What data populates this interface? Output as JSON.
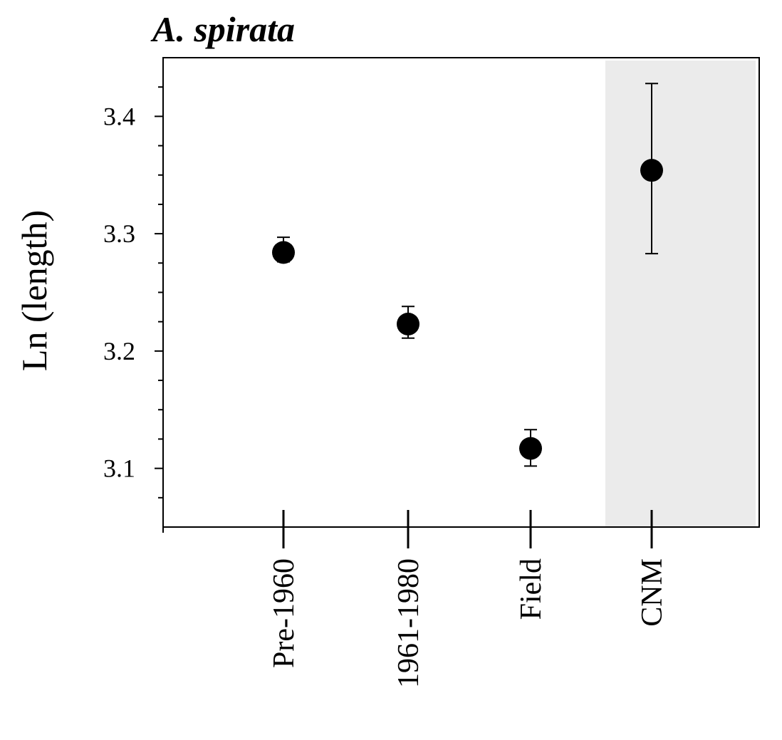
{
  "chart_data": {
    "type": "scatter",
    "title": "A. spirata",
    "xlabel": "",
    "ylabel": "Ln (length)",
    "categories": [
      "Pre-1960",
      "1961-1980",
      "Field",
      "CNM"
    ],
    "values": [
      3.284,
      3.223,
      3.117,
      3.354
    ],
    "error_low": [
      3.276,
      3.211,
      3.102,
      3.283
    ],
    "error_high": [
      3.297,
      3.238,
      3.133,
      3.428
    ],
    "highlight_categories": [
      "CNM"
    ],
    "highlight_color": "#ebebeb",
    "ylim": [
      3.05,
      3.45
    ],
    "yticks": [
      3.1,
      3.2,
      3.3,
      3.4
    ],
    "ytick_labels": [
      "3.1",
      "3.2",
      "3.3",
      "3.4"
    ],
    "grid": false,
    "marker_color": "#000000"
  }
}
